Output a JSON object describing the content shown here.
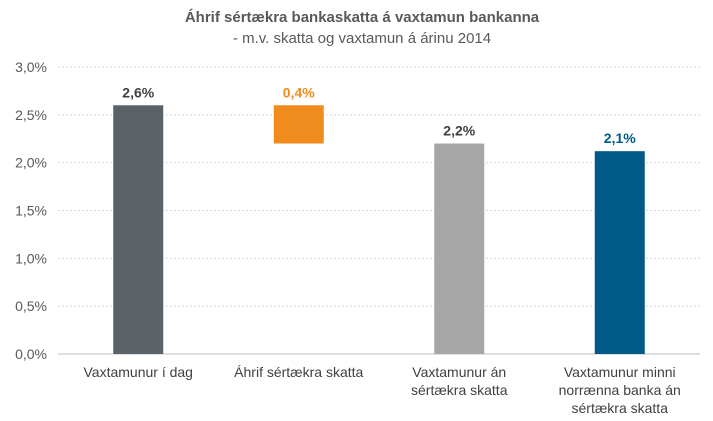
{
  "chart_data": {
    "type": "bar",
    "title": "Áhrif sértækra bankaskatta á vaxtamun bankanna",
    "subtitle": "- m.v. skatta og vaxtamun á árinu 2014",
    "xlabel": "",
    "ylabel": "",
    "ylim": [
      0,
      3.0
    ],
    "yticks": [
      "0,0%",
      "0,5%",
      "1,0%",
      "1,5%",
      "2,0%",
      "2,5%",
      "3,0%"
    ],
    "grid": true,
    "legend": "none",
    "categories": [
      [
        "Vaxtamunur í dag"
      ],
      [
        "Áhrif sértækra skatta"
      ],
      [
        "Vaxtamunur án",
        "sértækra skatta"
      ],
      [
        "Vaxtamunur minni",
        "norrænna banka án",
        "sértækra skatta"
      ]
    ],
    "bars": [
      {
        "base": 0,
        "value": 2.6,
        "label": "2,6%",
        "color": "#5a6268",
        "label_color": "#404040"
      },
      {
        "base": 2.2,
        "value": 2.6,
        "label": "0,4%",
        "color": "#f08c1e",
        "label_color": "#f08c1e"
      },
      {
        "base": 0,
        "value": 2.2,
        "label": "2,2%",
        "color": "#a6a6a6",
        "label_color": "#404040"
      },
      {
        "base": 0,
        "value": 2.12,
        "label": "2,1%",
        "color": "#005a87",
        "label_color": "#005a87"
      }
    ]
  }
}
